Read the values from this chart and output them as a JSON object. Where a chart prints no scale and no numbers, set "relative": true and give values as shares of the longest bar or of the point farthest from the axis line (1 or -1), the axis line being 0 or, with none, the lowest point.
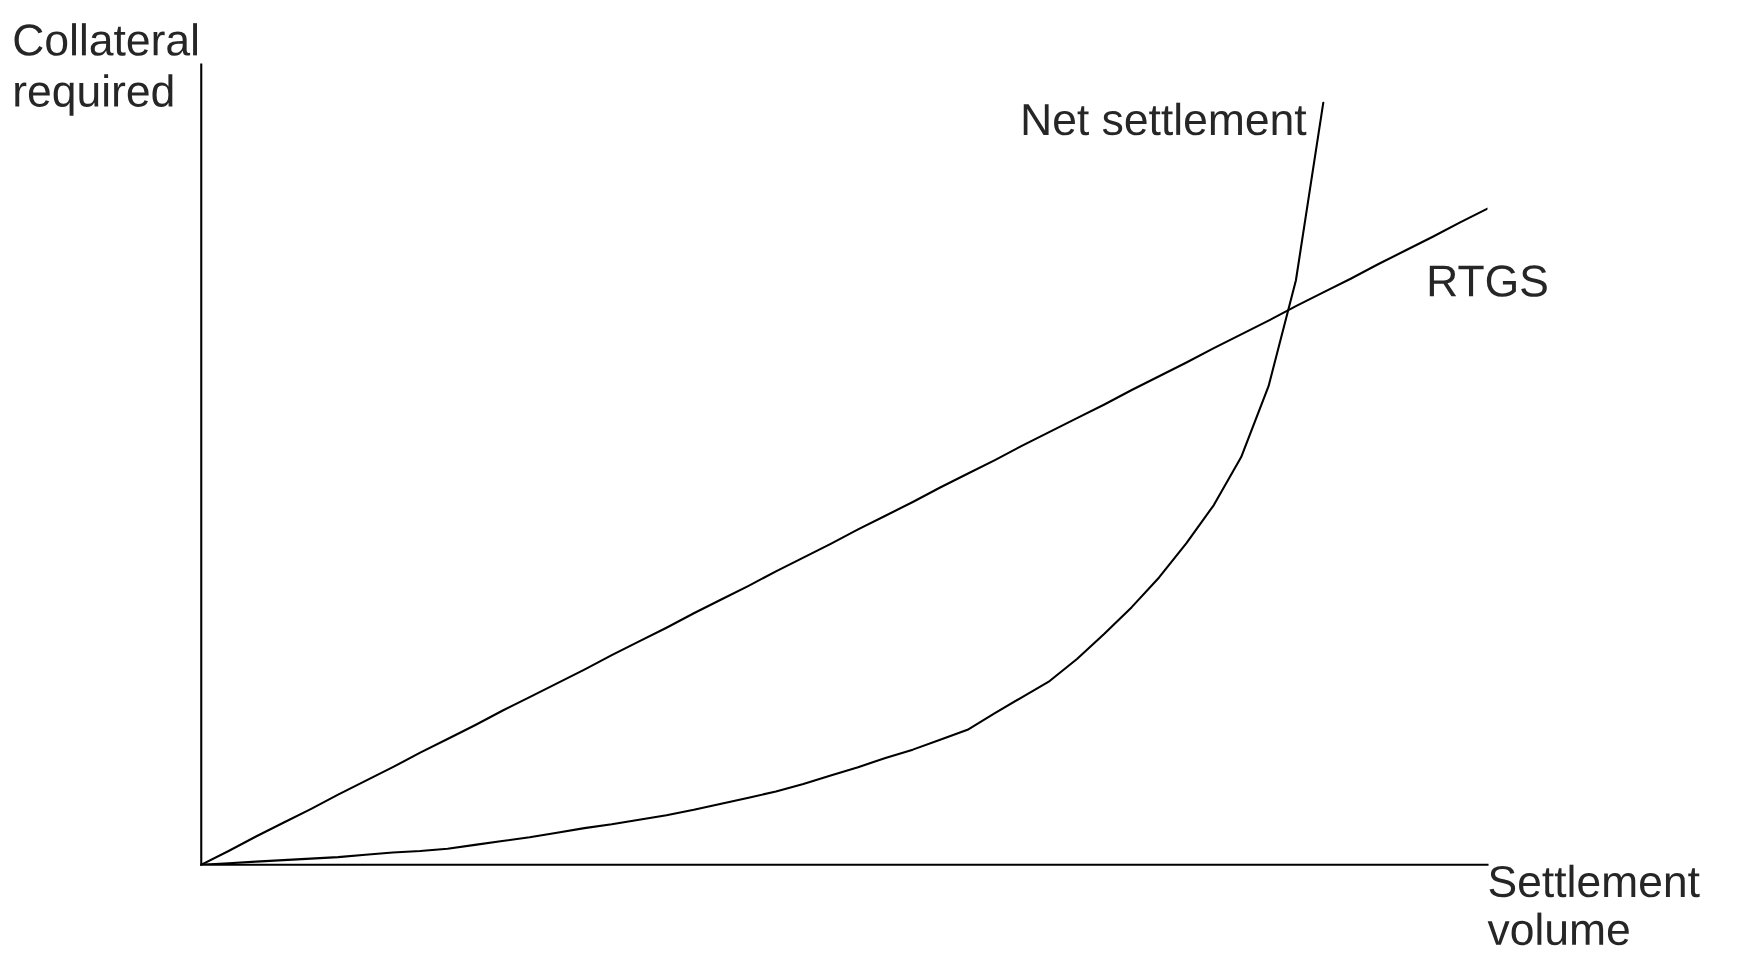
{
  "chart_data": {
    "type": "line",
    "relative": true,
    "xlabel": "Settlement volume",
    "ylabel": "Collateral required",
    "legend": false,
    "marker": "none",
    "line_style": "solid",
    "categories": [
      null,
      null,
      null,
      null,
      null,
      null,
      null,
      null,
      null,
      null,
      null,
      null,
      null,
      null,
      null,
      null,
      null,
      null,
      null,
      null,
      null,
      null,
      null,
      null,
      null,
      null,
      null,
      null,
      null,
      null,
      null,
      null,
      null,
      null,
      null,
      null,
      null,
      null,
      null,
      null,
      null,
      null,
      null,
      null,
      null,
      null,
      null,
      null
    ],
    "series": [
      {
        "name": "Net settlement",
        "color": "#000000",
        "values": [
          0,
          0.002,
          0.004,
          0.006,
          0.008,
          0.01,
          0.013,
          0.016,
          0.018,
          0.021,
          0.026,
          0.031,
          0.036,
          0.042,
          0.048,
          0.053,
          0.059,
          0.065,
          0.072,
          0.08,
          0.088,
          0.096,
          0.106,
          0.117,
          0.128,
          0.14,
          0.151,
          0.164,
          0.177,
          0.199,
          0.22,
          0.241,
          0.27,
          0.303,
          0.338,
          0.377,
          0.422,
          0.472,
          0.535,
          0.628,
          0.767,
          1.0,
          null,
          null,
          null,
          null,
          null,
          null
        ]
      },
      {
        "name": "RTGS",
        "color": "#000000",
        "values": [
          0,
          0.018,
          0.037,
          0.055,
          0.073,
          0.092,
          0.11,
          0.128,
          0.147,
          0.165,
          0.183,
          0.202,
          0.22,
          0.238,
          0.256,
          0.275,
          0.293,
          0.311,
          0.33,
          0.348,
          0.366,
          0.385,
          0.403,
          0.421,
          0.44,
          0.458,
          0.476,
          0.495,
          0.513,
          0.531,
          0.55,
          0.568,
          0.586,
          0.604,
          0.623,
          0.641,
          0.659,
          0.678,
          0.696,
          0.714,
          0.733,
          0.751,
          0.769,
          0.788,
          0.806,
          0.824,
          0.843,
          0.861
        ]
      }
    ]
  }
}
